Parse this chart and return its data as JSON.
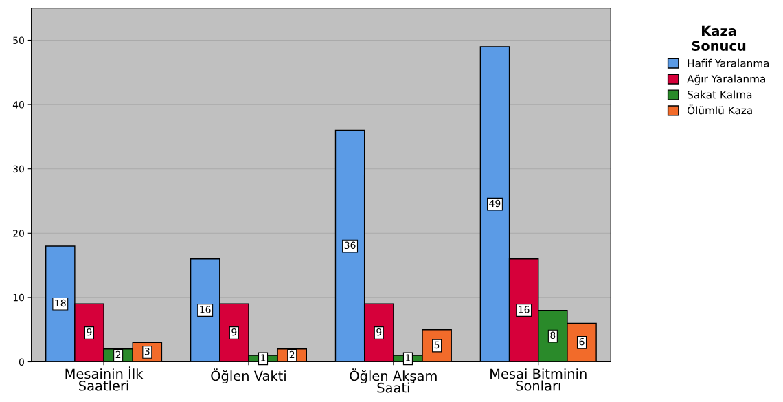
{
  "chart_data": {
    "type": "bar",
    "categories": [
      "Mesainin İlk\nSaatleri",
      "Öğlen Vakti",
      "Öğlen Akşam\nSaati",
      "Mesai Bitminin\nSonları"
    ],
    "series": [
      {
        "name": "Hafif Yaralanma",
        "color": "#5b9be6",
        "values": [
          18,
          16,
          36,
          49
        ]
      },
      {
        "name": "Ağır Yaralanma",
        "color": "#d6003a",
        "values": [
          9,
          9,
          9,
          16
        ]
      },
      {
        "name": "Sakat Kalma",
        "color": "#2a8a2a",
        "values": [
          2,
          1,
          1,
          8
        ]
      },
      {
        "name": "Ölümlü Kaza",
        "color": "#f26b2a",
        "values": [
          3,
          2,
          5,
          6
        ]
      }
    ],
    "legend_title": "Kaza\nSonucu",
    "legend": "top right",
    "ylim": [
      0,
      55
    ],
    "yticks": [
      0,
      10,
      20,
      30,
      40,
      50
    ],
    "grid": "y",
    "data_labels": true
  }
}
